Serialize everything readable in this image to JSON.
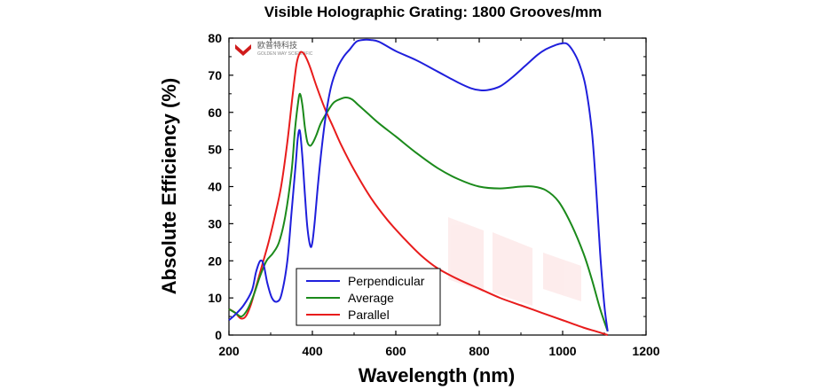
{
  "logo": {
    "text": "欧普特科技",
    "subtext": "GOLDEN WAY SCIENTIFIC"
  },
  "chart_data": {
    "type": "line",
    "title": "Visible Holographic Grating: 1800 Grooves/mm",
    "xlabel": "Wavelength (nm)",
    "ylabel": "Absolute Efficiency (%)",
    "xlim": [
      200,
      1200
    ],
    "ylim": [
      0,
      80
    ],
    "xticks": [
      200,
      400,
      600,
      800,
      1000,
      1200
    ],
    "yticks": [
      0,
      10,
      20,
      30,
      40,
      50,
      60,
      70,
      80
    ],
    "grid": false,
    "legend_position": "bottom-left",
    "series": [
      {
        "name": "Perpendicular",
        "color": "#1f1fdc",
        "x": [
          200,
          215,
          235,
          255,
          265,
          275,
          283,
          292,
          303,
          315,
          326,
          340,
          350,
          360,
          365,
          370,
          376,
          382,
          388,
          395,
          400,
          406,
          413,
          422,
          432,
          445,
          460,
          475,
          490,
          505,
          520,
          540,
          560,
          600,
          650,
          700,
          750,
          780,
          800,
          820,
          850,
          880,
          910,
          940,
          960,
          980,
          995,
          1010,
          1025,
          1040,
          1055,
          1070,
          1080,
          1090,
          1100,
          1108
        ],
        "y": [
          4,
          5.5,
          8,
          12,
          17,
          20,
          19,
          14,
          10,
          9,
          11,
          20,
          33,
          46,
          53,
          55,
          48,
          38,
          29,
          24,
          25,
          31,
          40,
          50,
          59,
          67,
          72,
          75,
          77,
          79,
          79.5,
          79.5,
          79,
          76.5,
          74,
          71,
          68,
          66.5,
          66,
          66,
          67,
          69.5,
          72.5,
          75.5,
          77,
          78,
          78.5,
          78.5,
          76.5,
          73,
          67,
          55,
          40,
          22,
          8,
          1
        ]
      },
      {
        "name": "Average",
        "color": "#1b8a1b",
        "x": [
          200,
          215,
          230,
          245,
          260,
          275,
          290,
          305,
          320,
          335,
          350,
          358,
          365,
          370,
          376,
          382,
          388,
          395,
          402,
          410,
          420,
          435,
          450,
          465,
          480,
          495,
          510,
          530,
          560,
          600,
          650,
          700,
          750,
          800,
          850,
          900,
          930,
          960,
          990,
          1020,
          1050,
          1070,
          1090,
          1108
        ],
        "y": [
          7,
          6,
          5,
          7,
          11,
          16,
          20,
          22,
          25,
          32,
          44,
          55,
          62,
          65,
          62,
          56,
          52,
          51,
          52,
          54,
          57,
          60,
          62.5,
          63.5,
          64,
          63.5,
          62,
          60,
          57,
          53.5,
          49,
          45,
          42,
          40,
          39.5,
          40,
          40,
          39,
          36,
          30,
          22,
          15,
          7,
          1
        ]
      },
      {
        "name": "Parallel",
        "color": "#e81c1c",
        "x": [
          200,
          215,
          228,
          240,
          252,
          265,
          280,
          295,
          310,
          325,
          340,
          352,
          362,
          370,
          378,
          386,
          395,
          410,
          430,
          450,
          470,
          500,
          540,
          580,
          620,
          660,
          700,
          750,
          800,
          850,
          900,
          950,
          1000,
          1050,
          1080,
          1108
        ],
        "y": [
          7,
          6,
          4.5,
          5,
          8,
          13,
          19,
          25,
          32,
          40,
          52,
          64,
          73,
          76,
          76,
          74.5,
          72,
          67,
          61,
          56,
          51,
          44.5,
          37,
          31,
          26,
          21.5,
          18,
          15,
          12.5,
          10,
          8,
          6,
          4,
          2,
          1,
          0
        ]
      }
    ]
  }
}
